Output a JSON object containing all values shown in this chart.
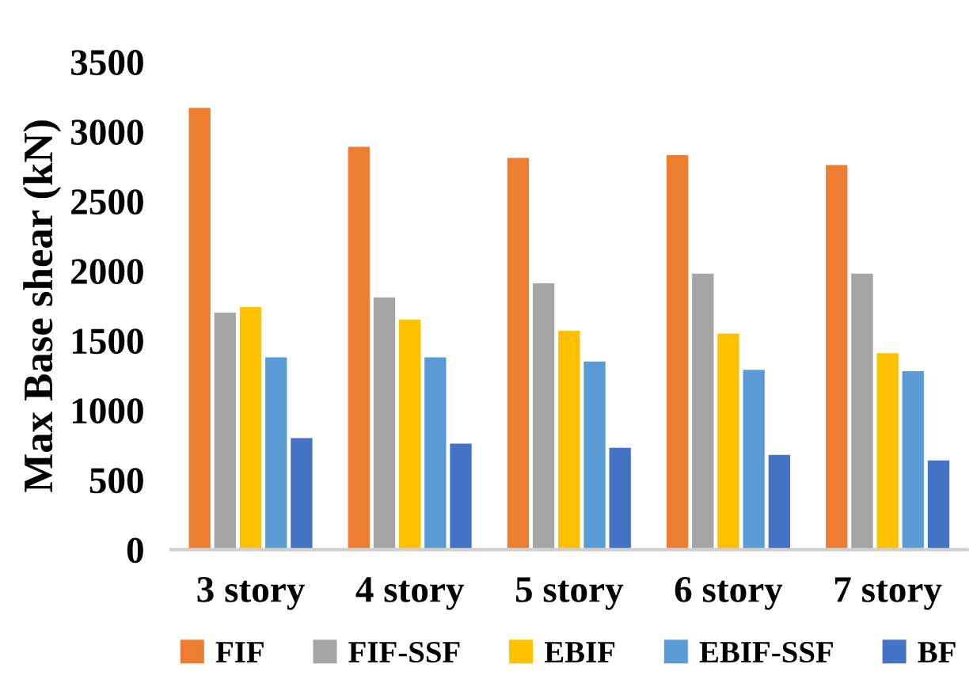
{
  "chart_data": {
    "type": "bar",
    "ylabel": "Max Base shear (kN)",
    "categories": [
      "3 story",
      "4 story",
      "5 story",
      "6 story",
      "7 story"
    ],
    "series": [
      {
        "name": "FIF",
        "color": "#ed7d31",
        "values": [
          3170,
          2890,
          2810,
          2830,
          2760
        ]
      },
      {
        "name": "FIF-SSF",
        "color": "#a5a5a5",
        "values": [
          1700,
          1810,
          1910,
          1980,
          1980
        ]
      },
      {
        "name": "EBIF",
        "color": "#ffc000",
        "values": [
          1740,
          1650,
          1570,
          1550,
          1410
        ]
      },
      {
        "name": "EBIF-SSF",
        "color": "#5b9bd5",
        "values": [
          1380,
          1380,
          1350,
          1290,
          1280
        ]
      },
      {
        "name": "BF",
        "color": "#4472c4",
        "values": [
          800,
          760,
          730,
          680,
          640
        ]
      }
    ],
    "ylim": [
      0,
      3500
    ],
    "yticks": [
      0,
      500,
      1000,
      1500,
      2000,
      2500,
      3000,
      3500
    ],
    "grid": false,
    "legend": "bottom"
  }
}
